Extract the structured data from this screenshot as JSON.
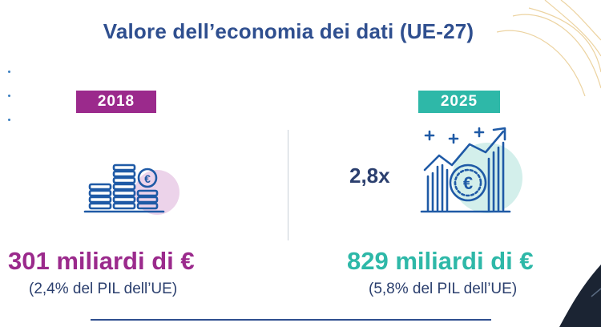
{
  "title": "Valore dell’economia dei dati (UE-27)",
  "left": {
    "year": "2018",
    "amount": "301 miliardi di €",
    "gdp_share": "(2,4% del PIL dell’UE)",
    "icon": "coin-stacks-euro-icon"
  },
  "right": {
    "year": "2025",
    "multiplier": "2,8x",
    "amount": "829 miliardi di €",
    "gdp_share": "(5,8% del PIL dell’UE)",
    "icon": "growth-chart-euro-icon"
  },
  "colors": {
    "title": "#2f4f8f",
    "accent_2018": "#9b2a8c",
    "accent_2025": "#2eb8a8",
    "icon_blue": "#1f5aa6"
  }
}
